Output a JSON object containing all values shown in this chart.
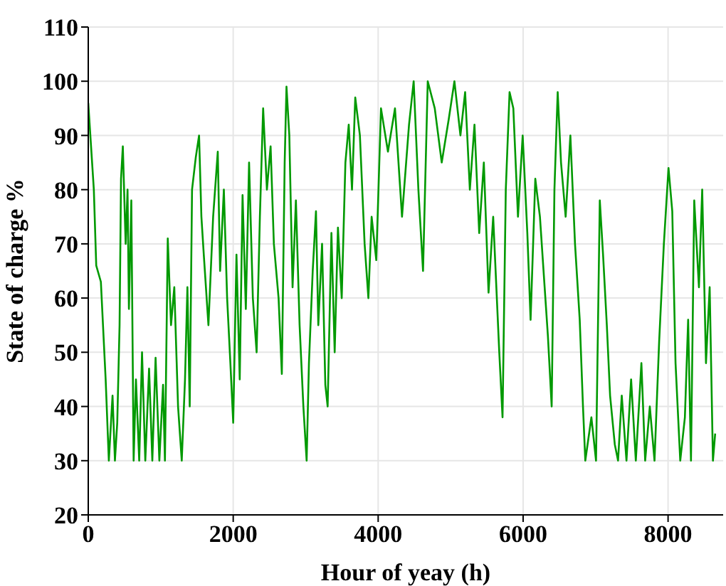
{
  "chart_data": {
    "type": "line",
    "xlabel": "Hour of yeay (h)",
    "ylabel": "State of charge %",
    "xlim": [
      0,
      8760
    ],
    "xticks": [
      0,
      2000,
      4000,
      6000,
      8000
    ],
    "ylim": [
      20,
      110
    ],
    "yticks": [
      20,
      30,
      40,
      50,
      60,
      70,
      80,
      90,
      100,
      110
    ],
    "grid": true,
    "legend": false,
    "marker": "none",
    "line_style": "solid",
    "series": [
      {
        "color": "#009900",
        "x": [
          0,
          77,
          110,
          174,
          240,
          284,
          335,
          368,
          400,
          432,
          452,
          477,
          516,
          542,
          561,
          594,
          626,
          658,
          703,
          742,
          787,
          839,
          884,
          929,
          981,
          1032,
          1058,
          1097,
          1142,
          1187,
          1239,
          1290,
          1335,
          1368,
          1400,
          1432,
          1484,
          1529,
          1561,
          1594,
          1658,
          1723,
          1787,
          1819,
          1871,
          1916,
          1961,
          2000,
          2045,
          2090,
          2129,
          2174,
          2219,
          2271,
          2323,
          2368,
          2413,
          2465,
          2516,
          2561,
          2626,
          2671,
          2710,
          2735,
          2774,
          2819,
          2865,
          2916,
          2968,
          3013,
          3045,
          3097,
          3142,
          3174,
          3226,
          3271,
          3303,
          3355,
          3400,
          3445,
          3497,
          3548,
          3594,
          3639,
          3684,
          3748,
          3813,
          3865,
          3910,
          3974,
          4039,
          4135,
          4232,
          4329,
          4426,
          4490,
          4555,
          4619,
          4684,
          4781,
          4877,
          4974,
          5052,
          5135,
          5200,
          5265,
          5329,
          5394,
          5458,
          5523,
          5587,
          5671,
          5716,
          5761,
          5813,
          5865,
          5929,
          5994,
          6058,
          6103,
          6168,
          6232,
          6297,
          6342,
          6394,
          6432,
          6477,
          6523,
          6587,
          6652,
          6716,
          6781,
          6826,
          6858,
          6942,
          7006,
          7058,
          7103,
          7155,
          7200,
          7265,
          7310,
          7361,
          7426,
          7490,
          7555,
          7632,
          7684,
          7748,
          7813,
          7877,
          7942,
          8006,
          8058,
          8103,
          8168,
          8232,
          8277,
          8316,
          8361,
          8426,
          8471,
          8523,
          8574,
          8619,
          8650
        ],
        "values": [
          96,
          80,
          66,
          63,
          45,
          30,
          42,
          30,
          37,
          55,
          82,
          88,
          70,
          80,
          58,
          78,
          30,
          45,
          30,
          50,
          30,
          47,
          30,
          49,
          30,
          44,
          30,
          71,
          55,
          62,
          40,
          30,
          45,
          62,
          40,
          80,
          86,
          90,
          75,
          68,
          55,
          75,
          87,
          65,
          80,
          60,
          48,
          37,
          68,
          45,
          79,
          58,
          85,
          60,
          50,
          75,
          95,
          80,
          88,
          70,
          60,
          46,
          85,
          99,
          90,
          62,
          78,
          55,
          40,
          30,
          48,
          65,
          76,
          55,
          70,
          44,
          40,
          72,
          50,
          73,
          60,
          85,
          92,
          80,
          97,
          90,
          70,
          60,
          75,
          67,
          95,
          87,
          95,
          75,
          92,
          100,
          80,
          65,
          100,
          95,
          85,
          93,
          100,
          90,
          98,
          80,
          92,
          72,
          85,
          61,
          75,
          50,
          38,
          80,
          98,
          95,
          75,
          90,
          72,
          56,
          82,
          75,
          62,
          53,
          40,
          80,
          98,
          85,
          75,
          90,
          70,
          56,
          40,
          30,
          38,
          30,
          78,
          68,
          55,
          42,
          33,
          30,
          42,
          30,
          45,
          30,
          48,
          30,
          40,
          30,
          52,
          70,
          84,
          76,
          48,
          30,
          38,
          56,
          30,
          78,
          62,
          80,
          48,
          62,
          30,
          35
        ]
      }
    ]
  }
}
